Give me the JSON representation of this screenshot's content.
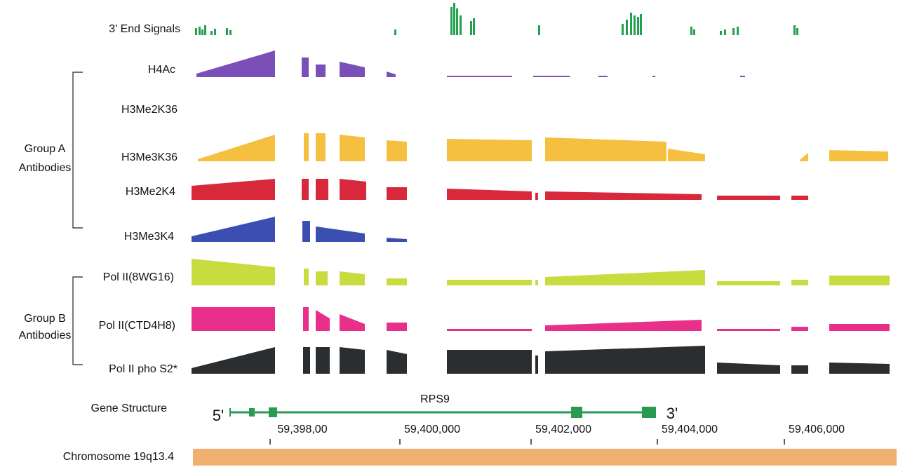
{
  "tracks": [
    {
      "label": "3' End Signals"
    },
    {
      "label": "H4Ac"
    },
    {
      "label": "H3Me2K36"
    },
    {
      "label": "H3Me3K36"
    },
    {
      "label": "H3Me2K4"
    },
    {
      "label": "H3Me3K4"
    },
    {
      "label": "Pol II(8WG16)"
    },
    {
      "label": "Pol II(CTD4H8)"
    },
    {
      "label": "Pol II pho S2*"
    }
  ],
  "groups": [
    {
      "line1": "Group A",
      "line2": "Antibodies"
    },
    {
      "line1": "Group B",
      "line2": "Antibodies"
    }
  ],
  "gene": {
    "label": "Gene Structure",
    "name": "RPS9",
    "five_prime": "5'",
    "three_prime": "3'"
  },
  "axis_ticks": [
    "59,398,00",
    "59,400,000",
    "59,402,000",
    "59,404,000",
    "59,406,000"
  ],
  "chromosome": "Chromosome 19q13.4"
}
